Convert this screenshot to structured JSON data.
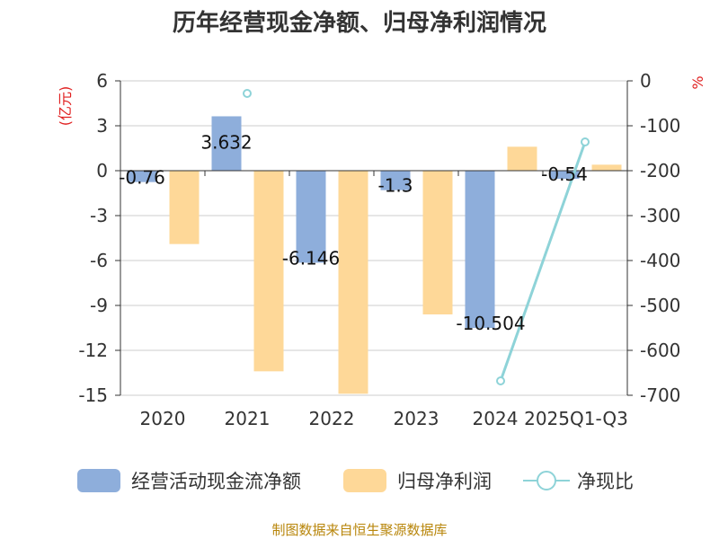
{
  "chart_data": {
    "type": "bar",
    "title": "历年经营现金净额、归母净利润情况",
    "categories": [
      "2020",
      "2021",
      "2022",
      "2023",
      "2024",
      "2025Q1-Q3"
    ],
    "left_axis": {
      "unit": "(亿元)",
      "min": -15,
      "max": 6,
      "ticks": [
        6,
        3,
        0,
        -3,
        -6,
        -9,
        -12,
        -15
      ]
    },
    "right_axis": {
      "unit": "%",
      "min": -700,
      "max": 0,
      "ticks": [
        0,
        -100,
        -200,
        -300,
        -400,
        -500,
        -600,
        -700
      ]
    },
    "series": [
      {
        "name": "经营活动现金流净额",
        "type": "bar",
        "axis": "left",
        "color": "#8eaedb",
        "values": [
          -0.76,
          3.632,
          -6.146,
          -1.3,
          -10.504,
          -0.54
        ],
        "labels": [
          "-0.76",
          "3.632",
          "-6.146",
          "-1.3",
          "-10.504",
          "-0.54"
        ]
      },
      {
        "name": "归母净利润",
        "type": "bar",
        "axis": "left",
        "color": "#fed898",
        "values": [
          -4.9,
          -13.4,
          -14.9,
          -9.6,
          1.6,
          0.4
        ]
      },
      {
        "name": "净现比",
        "type": "line",
        "axis": "right",
        "color": "#8ed3d8",
        "values": [
          null,
          -28,
          null,
          null,
          -668,
          -136
        ]
      }
    ],
    "grid": true,
    "legend": "bottom"
  },
  "source_text": "制图数据来自恒生聚源数据库"
}
